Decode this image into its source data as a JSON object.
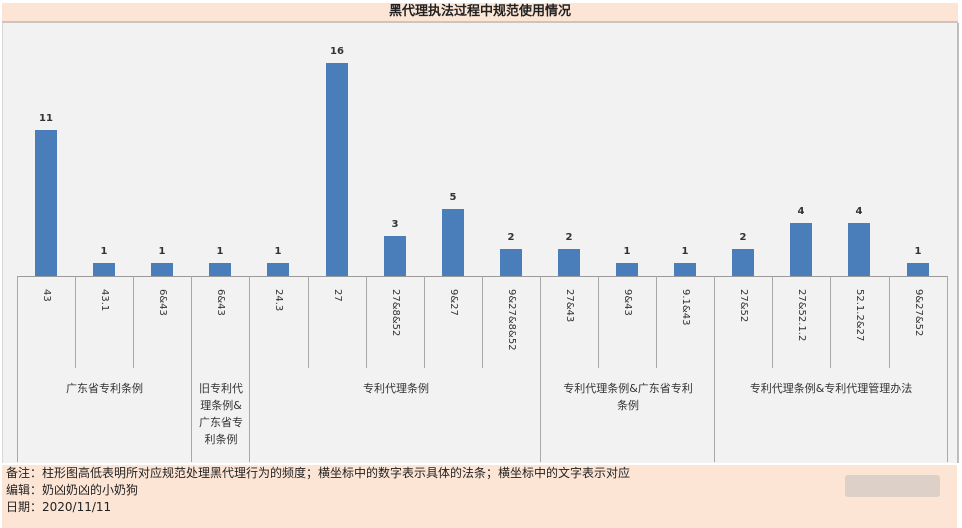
{
  "chart_data": {
    "type": "bar",
    "title": "黑代理执法过程中规范使用情况",
    "xlabel": "",
    "ylabel": "",
    "ylim": [
      0,
      17
    ],
    "grid": false,
    "legend": null,
    "categories": [
      "43",
      "43.1",
      "6&43",
      "6&43",
      "24.3",
      "27",
      "27&8&52",
      "9&27",
      "9&27&8&52",
      "27&43",
      "9&43",
      "9.1&43",
      "27&52",
      "27&52.1.2",
      "52.1.2&27",
      "9&27&52"
    ],
    "values": [
      11,
      1,
      1,
      1,
      1,
      16,
      3,
      5,
      2,
      2,
      1,
      1,
      2,
      4,
      4,
      1
    ],
    "groups": [
      {
        "label": "广东省专利条例",
        "span": [
          0,
          2
        ]
      },
      {
        "label": "旧专利代理条例&广东省专利条例",
        "span": [
          3,
          3
        ]
      },
      {
        "label": "专利代理条例",
        "span": [
          4,
          8
        ]
      },
      {
        "label": "专利代理条例&广东省专利条例",
        "span": [
          9,
          11
        ]
      },
      {
        "label": "专利代理条例&专利代理管理办法",
        "span": [
          12,
          15
        ]
      }
    ],
    "bar_color": "#4a7ebb"
  },
  "header": {
    "title": "黑代理执法过程中规范使用情况"
  },
  "groups": {
    "g0": "广东省专利条例",
    "g1_l1": "旧专利代",
    "g1_l2": "理条例&",
    "g1_l3": "广东省专",
    "g1_l4": "利条例",
    "g2": "专利代理条例",
    "g3_l1": "专利代理条例&广东省专利",
    "g3_l2": "条例",
    "g4": "专利代理条例&专利代理管理办法"
  },
  "footer": {
    "note": "备注：柱形图高低表明所对应规范处理黑代理行为的频度；横坐标中的数字表示具体的法条；横坐标中的文字表示对应",
    "editor": "编辑：奶凶奶凶的小奶狗",
    "date": "日期：2020/11/11"
  },
  "colors": {
    "title_bg": "#fde5d6",
    "plot_bg": "#f2f2f2",
    "bar": "#4a7ebb"
  }
}
